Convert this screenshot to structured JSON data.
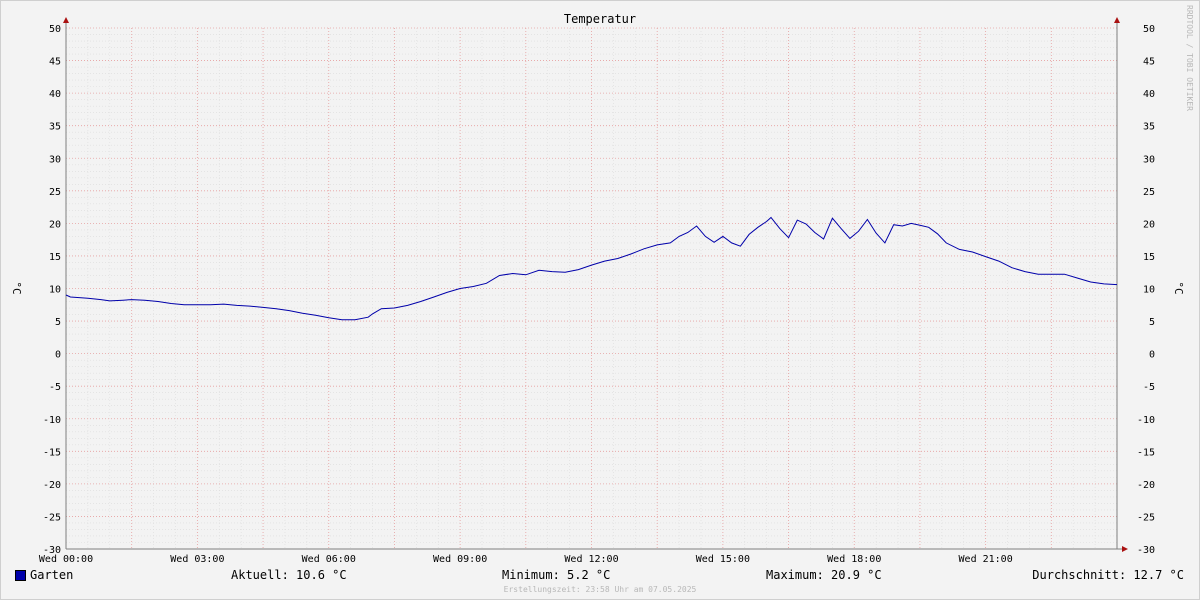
{
  "chart_data": {
    "type": "line",
    "title": "Temperatur",
    "ylabel": "°C",
    "ylim": [
      -30,
      50
    ],
    "y_ticks": [
      50,
      45,
      40,
      35,
      30,
      25,
      20,
      15,
      10,
      5,
      0,
      -5,
      -10,
      -15,
      -20,
      -25,
      -30
    ],
    "x_range_hours": [
      0,
      24
    ],
    "x_ticks": [
      {
        "label": "Wed 00:00",
        "hour": 0
      },
      {
        "label": "Wed 03:00",
        "hour": 3
      },
      {
        "label": "Wed 06:00",
        "hour": 6
      },
      {
        "label": "Wed 09:00",
        "hour": 9
      },
      {
        "label": "Wed 12:00",
        "hour": 12
      },
      {
        "label": "Wed 15:00",
        "hour": 15
      },
      {
        "label": "Wed 18:00",
        "hour": 18
      },
      {
        "label": "Wed 21:00",
        "hour": 21
      }
    ],
    "grid": true,
    "legend_position": "bottom-left",
    "series": [
      {
        "name": "Garten",
        "color": "#0000aa",
        "x": [
          0,
          0.1,
          0.3,
          0.5,
          0.8,
          1.0,
          1.3,
          1.5,
          1.8,
          2.1,
          2.4,
          2.7,
          3.0,
          3.3,
          3.6,
          3.9,
          4.2,
          4.5,
          4.8,
          5.1,
          5.4,
          5.7,
          6.0,
          6.3,
          6.6,
          6.9,
          7.0,
          7.2,
          7.5,
          7.8,
          8.1,
          8.4,
          8.7,
          9.0,
          9.3,
          9.6,
          9.9,
          10.2,
          10.5,
          10.8,
          11.1,
          11.4,
          11.7,
          12.0,
          12.3,
          12.6,
          12.9,
          13.2,
          13.5,
          13.8,
          14.0,
          14.2,
          14.4,
          14.6,
          14.8,
          15.0,
          15.2,
          15.4,
          15.6,
          15.8,
          16.0,
          16.1,
          16.3,
          16.5,
          16.7,
          16.9,
          17.1,
          17.3,
          17.5,
          17.7,
          17.9,
          18.1,
          18.3,
          18.5,
          18.7,
          18.9,
          19.1,
          19.3,
          19.5,
          19.7,
          19.9,
          20.1,
          20.4,
          20.7,
          21.0,
          21.3,
          21.6,
          21.9,
          22.2,
          22.5,
          22.8,
          23.1,
          23.4,
          23.7,
          24.0
        ],
        "values": [
          9.0,
          8.7,
          8.6,
          8.5,
          8.3,
          8.1,
          8.2,
          8.3,
          8.2,
          8.0,
          7.7,
          7.5,
          7.5,
          7.5,
          7.6,
          7.4,
          7.3,
          7.1,
          6.9,
          6.6,
          6.2,
          5.9,
          5.5,
          5.2,
          5.2,
          5.6,
          6.1,
          6.9,
          7.0,
          7.4,
          8.0,
          8.7,
          9.4,
          10.0,
          10.3,
          10.8,
          12.0,
          12.3,
          12.1,
          12.8,
          12.6,
          12.5,
          12.9,
          13.6,
          14.2,
          14.6,
          15.3,
          16.1,
          16.7,
          17.0,
          18.0,
          18.6,
          19.6,
          18.0,
          17.1,
          18.0,
          17.0,
          16.5,
          18.3,
          19.4,
          20.3,
          20.9,
          19.2,
          17.8,
          20.5,
          19.9,
          18.6,
          17.6,
          20.8,
          19.2,
          17.7,
          18.8,
          20.6,
          18.5,
          17.0,
          19.8,
          19.6,
          20.0,
          19.7,
          19.4,
          18.4,
          17.0,
          16.0,
          15.6,
          14.9,
          14.2,
          13.2,
          12.6,
          12.2,
          12.2,
          12.2,
          11.6,
          11.0,
          10.7,
          10.6
        ]
      }
    ]
  },
  "legend": {
    "series_name": "Garten",
    "current": "Aktuell: 10.6 °C",
    "minimum": "Minimum: 5.2 °C",
    "maximum": "Maximum: 20.9 °C",
    "average": "Durchschnitt: 12.7 °C"
  },
  "watermark": "RRDTOOL / TOBI OETIKER",
  "footer": "Erstellungszeit: 23:58 Uhr am 07.05.2025"
}
